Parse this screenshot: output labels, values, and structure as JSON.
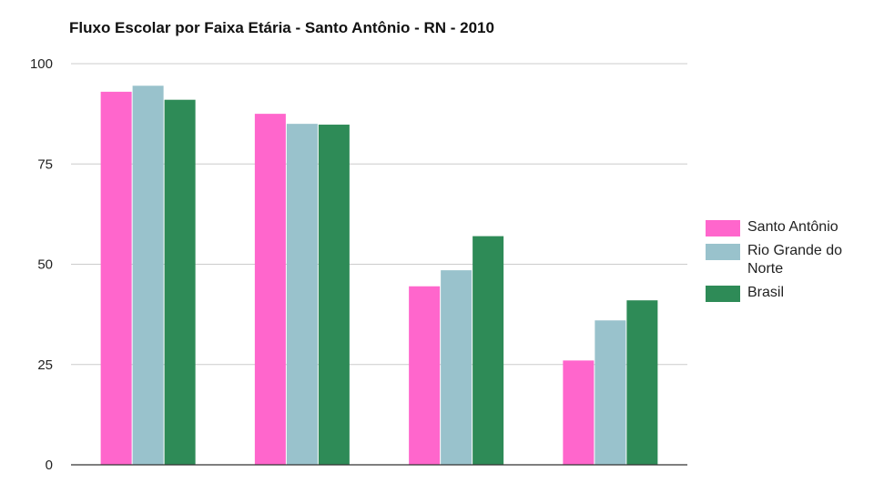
{
  "chart_data": {
    "type": "bar",
    "title": "Fluxo Escolar por Faixa Etária - Santo Antônio - RN - 2010",
    "xlabel": "",
    "ylabel": "",
    "categories": [
      "",
      "",
      "",
      ""
    ],
    "ylim": [
      0,
      100
    ],
    "yticks": [
      0,
      25,
      50,
      75,
      100
    ],
    "grid": true,
    "legend_position": "right",
    "series": [
      {
        "name": "Santo Antônio",
        "color": "#ff66cc",
        "values": [
          93,
          87.5,
          44.5,
          26
        ]
      },
      {
        "name": "Rio Grande do Norte",
        "color": "#99c2cc",
        "values": [
          94.5,
          85,
          48.5,
          36
        ]
      },
      {
        "name": "Brasil",
        "color": "#2e8b57",
        "values": [
          91,
          84.8,
          57,
          41
        ]
      }
    ]
  }
}
